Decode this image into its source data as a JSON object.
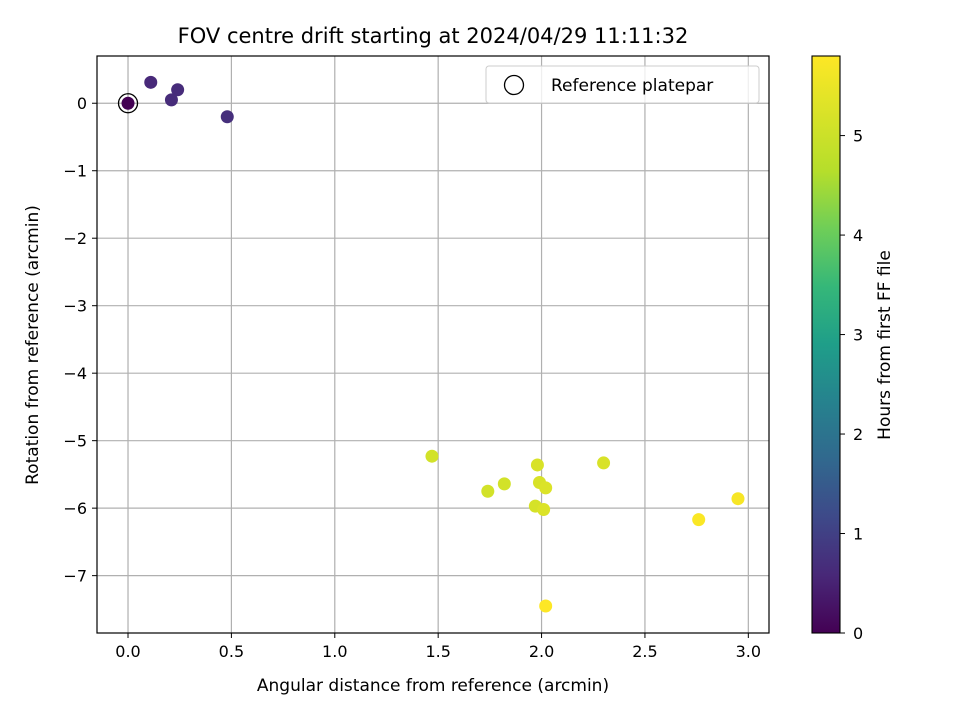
{
  "chart_data": {
    "type": "scatter",
    "title": "FOV centre drift starting at 2024/04/29 11:11:32",
    "xlabel": "Angular distance from reference (arcmin)",
    "ylabel": "Rotation from reference (arcmin)",
    "xlim": [
      -0.15,
      3.1
    ],
    "ylim": [
      -7.85,
      0.7
    ],
    "xticks": [
      0.0,
      0.5,
      1.0,
      1.5,
      2.0,
      2.5,
      3.0
    ],
    "xtick_labels": [
      "0.0",
      "0.5",
      "1.0",
      "1.5",
      "2.0",
      "2.5",
      "3.0"
    ],
    "yticks": [
      0,
      -1,
      -2,
      -3,
      -4,
      -5,
      -6,
      -7
    ],
    "ytick_labels": [
      "0",
      "−1",
      "−2",
      "−3",
      "−4",
      "−5",
      "−6",
      "−7"
    ],
    "grid": true,
    "legend": {
      "position": "top-right",
      "entries": [
        "Reference platepar"
      ]
    },
    "reference_point": {
      "x": 0.0,
      "y": 0.0
    },
    "colorbar": {
      "label": "Hours from first FF file",
      "range": [
        0,
        5.8
      ],
      "ticks": [
        0,
        1,
        2,
        3,
        4,
        5
      ],
      "tick_labels": [
        "0",
        "1",
        "2",
        "3",
        "4",
        "5"
      ],
      "colormap": "viridis"
    },
    "points": [
      {
        "x": 0.0,
        "y": 0.0,
        "c": 0.0
      },
      {
        "x": 0.11,
        "y": 0.31,
        "c": 0.6
      },
      {
        "x": 0.21,
        "y": 0.05,
        "c": 0.65
      },
      {
        "x": 0.24,
        "y": 0.2,
        "c": 0.65
      },
      {
        "x": 0.48,
        "y": -0.2,
        "c": 0.7
      },
      {
        "x": 1.47,
        "y": -5.23,
        "c": 5.1
      },
      {
        "x": 1.74,
        "y": -5.75,
        "c": 5.1
      },
      {
        "x": 1.82,
        "y": -5.64,
        "c": 5.1
      },
      {
        "x": 1.97,
        "y": -5.97,
        "c": 5.15
      },
      {
        "x": 1.98,
        "y": -5.36,
        "c": 5.2
      },
      {
        "x": 1.99,
        "y": -5.62,
        "c": 5.2
      },
      {
        "x": 2.01,
        "y": -6.02,
        "c": 5.25
      },
      {
        "x": 2.02,
        "y": -5.7,
        "c": 5.25
      },
      {
        "x": 2.3,
        "y": -5.33,
        "c": 5.2
      },
      {
        "x": 2.02,
        "y": -7.45,
        "c": 5.8
      },
      {
        "x": 2.76,
        "y": -6.17,
        "c": 5.75
      },
      {
        "x": 2.95,
        "y": -5.86,
        "c": 5.7
      }
    ]
  }
}
